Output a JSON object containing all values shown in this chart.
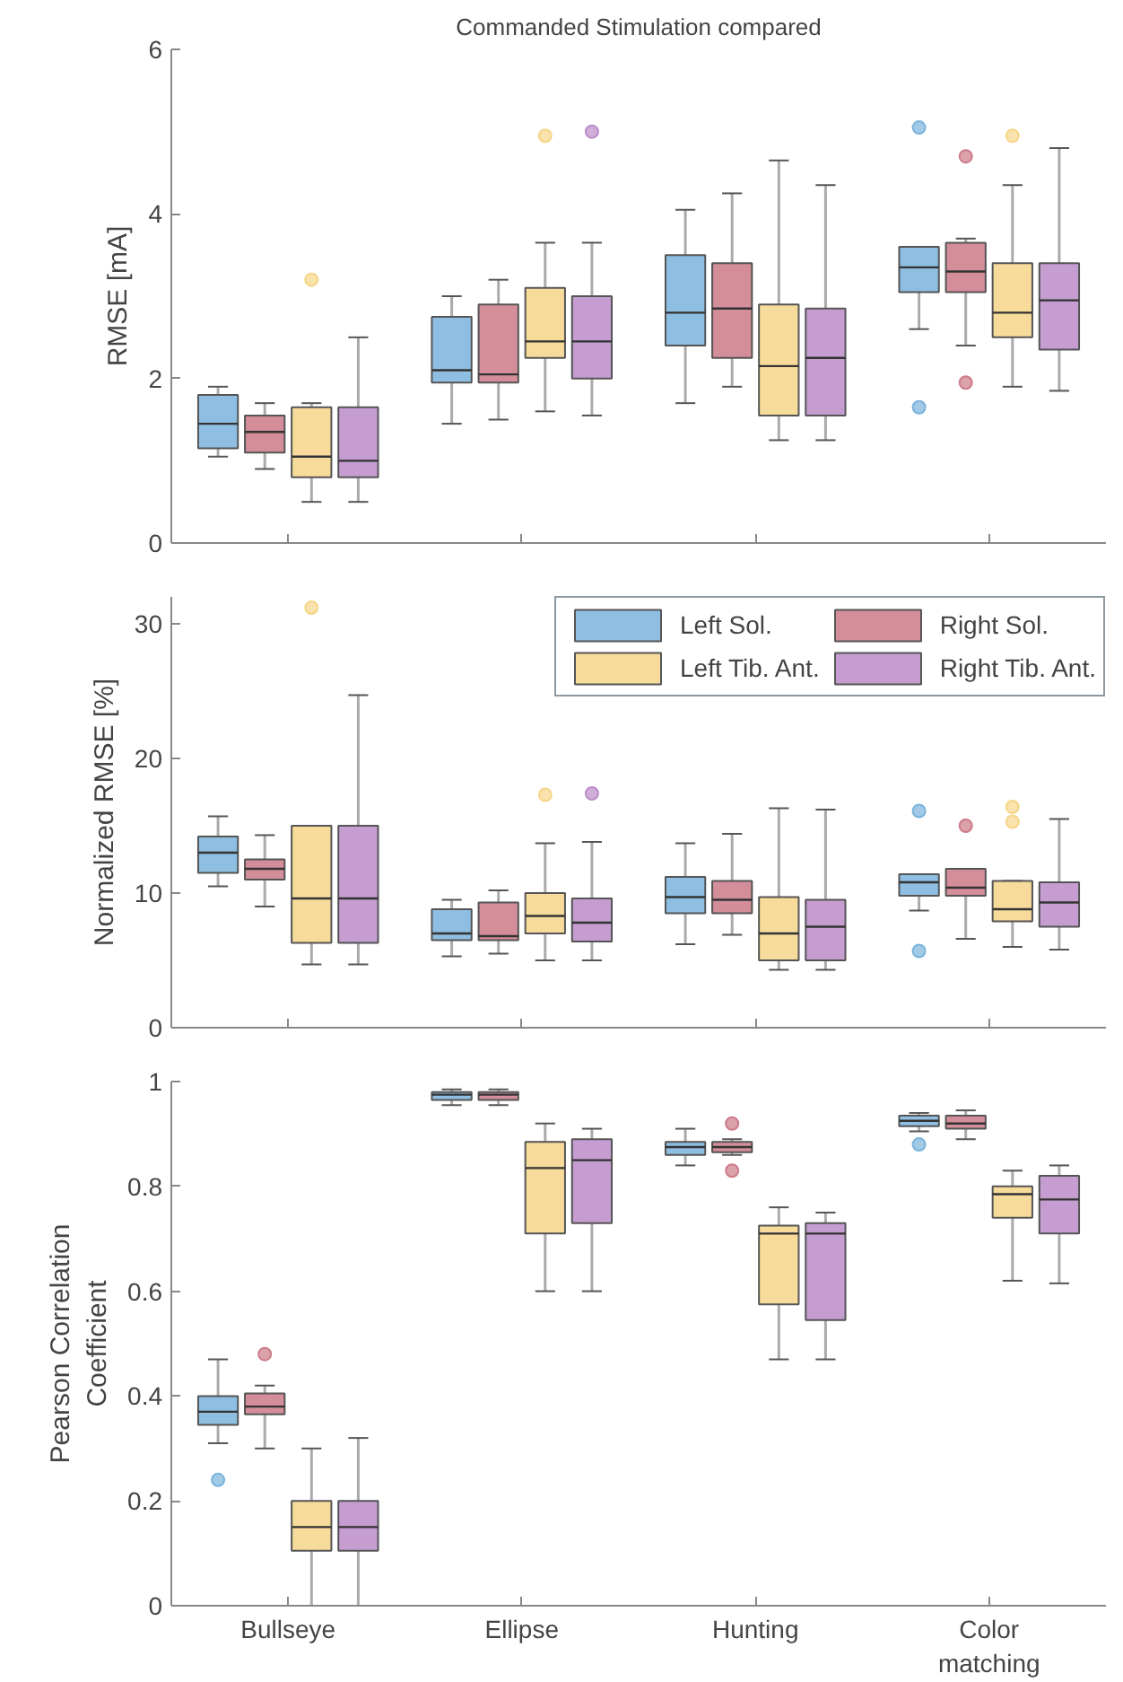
{
  "chart_data": [
    {
      "type": "box",
      "title": "Commanded Stimulation compared",
      "ylabel": "RMSE [mA]",
      "ylim": [
        0,
        6
      ],
      "yticks": [
        0,
        2,
        4,
        6
      ],
      "grid": false,
      "tick_labels": "y",
      "series": [
        {
          "color": "#7ab3dc",
          "boxes": [
            {
              "low": 1.05,
              "q1": 1.15,
              "median": 1.45,
              "q3": 1.8,
              "high": 1.9
            },
            {
              "low": 1.45,
              "q1": 1.95,
              "median": 2.1,
              "q3": 2.75,
              "high": 3.0
            },
            {
              "low": 1.7,
              "q1": 2.4,
              "median": 2.8,
              "q3": 3.5,
              "high": 4.05
            },
            {
              "low": 2.6,
              "q1": 3.05,
              "median": 3.35,
              "q3": 3.6,
              "high": 3.6,
              "outliers": [
                5.05,
                1.65
              ]
            }
          ]
        },
        {
          "color": "#cd7a87",
          "boxes": [
            {
              "low": 0.9,
              "q1": 1.1,
              "median": 1.35,
              "q3": 1.55,
              "high": 1.7
            },
            {
              "low": 1.5,
              "q1": 1.95,
              "median": 2.05,
              "q3": 2.9,
              "high": 3.2
            },
            {
              "low": 1.9,
              "q1": 2.25,
              "median": 2.85,
              "q3": 3.4,
              "high": 4.25
            },
            {
              "low": 2.4,
              "q1": 3.05,
              "median": 3.3,
              "q3": 3.65,
              "high": 3.7,
              "outliers": [
                4.7,
                1.95
              ]
            }
          ]
        },
        {
          "color": "#f6d588",
          "boxes": [
            {
              "low": 0.5,
              "q1": 0.8,
              "median": 1.05,
              "q3": 1.65,
              "high": 1.7,
              "outliers": [
                3.2
              ]
            },
            {
              "low": 1.6,
              "q1": 2.25,
              "median": 2.45,
              "q3": 3.1,
              "high": 3.65,
              "outliers": [
                4.95
              ]
            },
            {
              "low": 1.25,
              "q1": 1.55,
              "median": 2.15,
              "q3": 2.9,
              "high": 4.65
            },
            {
              "low": 1.9,
              "q1": 2.5,
              "median": 2.8,
              "q3": 3.4,
              "high": 4.35,
              "outliers": [
                4.95
              ]
            }
          ]
        },
        {
          "color": "#bb8cc8",
          "boxes": [
            {
              "low": 0.5,
              "q1": 0.8,
              "median": 1.0,
              "q3": 1.65,
              "high": 2.5
            },
            {
              "low": 1.55,
              "q1": 2.0,
              "median": 2.45,
              "q3": 3.0,
              "high": 3.65,
              "outliers": [
                5.0
              ]
            },
            {
              "low": 1.25,
              "q1": 1.55,
              "median": 2.25,
              "q3": 2.85,
              "high": 4.35
            },
            {
              "low": 1.85,
              "q1": 2.35,
              "median": 2.95,
              "q3": 3.4,
              "high": 4.8
            }
          ]
        }
      ]
    },
    {
      "type": "box",
      "ylabel": "Normalized RMSE [%]",
      "ylim": [
        0,
        32
      ],
      "yticks": [
        0,
        10,
        20,
        30
      ],
      "grid": false,
      "tick_labels": "y",
      "legend": "top right",
      "series": [
        {
          "name": "Left Sol.",
          "color": "#7ab3dc",
          "boxes": [
            {
              "low": 10.5,
              "q1": 11.5,
              "median": 13,
              "q3": 14.2,
              "high": 15.7
            },
            {
              "low": 5.3,
              "q1": 6.5,
              "median": 7,
              "q3": 8.8,
              "high": 9.5
            },
            {
              "low": 6.2,
              "q1": 8.5,
              "median": 9.7,
              "q3": 11.2,
              "high": 13.7
            },
            {
              "low": 8.7,
              "q1": 9.8,
              "median": 10.8,
              "q3": 11.4,
              "high": 11.4,
              "outliers": [
                16.1,
                5.7
              ]
            }
          ]
        },
        {
          "name": "Right Sol.",
          "color": "#cd7a87",
          "boxes": [
            {
              "low": 9,
              "q1": 11,
              "median": 11.8,
              "q3": 12.5,
              "high": 14.3
            },
            {
              "low": 5.5,
              "q1": 6.5,
              "median": 6.8,
              "q3": 9.3,
              "high": 10.2
            },
            {
              "low": 6.9,
              "q1": 8.5,
              "median": 9.5,
              "q3": 10.9,
              "high": 14.4
            },
            {
              "low": 6.6,
              "q1": 9.8,
              "median": 10.4,
              "q3": 11.8,
              "high": 11.8,
              "outliers": [
                15
              ]
            }
          ]
        },
        {
          "name": "Left Tib. Ant.",
          "color": "#f6d588",
          "boxes": [
            {
              "low": 4.7,
              "q1": 6.3,
              "median": 9.6,
              "q3": 15,
              "high": 15,
              "outliers": [
                31.2
              ]
            },
            {
              "low": 5,
              "q1": 7,
              "median": 8.3,
              "q3": 10,
              "high": 13.7,
              "outliers": [
                17.3
              ]
            },
            {
              "low": 4.3,
              "q1": 5,
              "median": 7,
              "q3": 9.7,
              "high": 16.3
            },
            {
              "low": 6,
              "q1": 7.9,
              "median": 8.8,
              "q3": 10.9,
              "high": 10.9,
              "outliers": [
                15.3,
                16.4
              ]
            }
          ]
        },
        {
          "name": "Right Tib. Ant.",
          "color": "#bb8cc8",
          "boxes": [
            {
              "low": 4.7,
              "q1": 6.3,
              "median": 9.6,
              "q3": 15,
              "high": 24.7
            },
            {
              "low": 5,
              "q1": 6.4,
              "median": 7.8,
              "q3": 9.6,
              "high": 13.8,
              "outliers": [
                17.4
              ]
            },
            {
              "low": 4.3,
              "q1": 5,
              "median": 7.5,
              "q3": 9.5,
              "high": 16.2
            },
            {
              "low": 5.8,
              "q1": 7.5,
              "median": 9.3,
              "q3": 10.8,
              "high": 15.5
            }
          ]
        }
      ]
    },
    {
      "type": "box",
      "ylabel": "Pearson Correlation\nCoefficient",
      "categories": [
        "Bullseye",
        "Ellipse",
        "Hunting",
        "Color\nmatching"
      ],
      "ylim": [
        0,
        1
      ],
      "yticks": [
        0,
        0.2,
        0.4,
        0.6,
        0.8,
        1
      ],
      "grid": false,
      "series": [
        {
          "color": "#7ab3dc",
          "boxes": [
            {
              "low": 0.31,
              "q1": 0.345,
              "median": 0.37,
              "q3": 0.4,
              "high": 0.47,
              "outliers": [
                0.24
              ]
            },
            {
              "low": 0.955,
              "q1": 0.965,
              "median": 0.975,
              "q3": 0.98,
              "high": 0.985
            },
            {
              "low": 0.84,
              "q1": 0.86,
              "median": 0.875,
              "q3": 0.885,
              "high": 0.91
            },
            {
              "low": 0.905,
              "q1": 0.915,
              "median": 0.925,
              "q3": 0.935,
              "high": 0.94,
              "outliers": [
                0.88
              ]
            }
          ]
        },
        {
          "color": "#cd7a87",
          "boxes": [
            {
              "low": 0.3,
              "q1": 0.365,
              "median": 0.38,
              "q3": 0.405,
              "high": 0.42,
              "outliers": [
                0.48
              ]
            },
            {
              "low": 0.955,
              "q1": 0.965,
              "median": 0.975,
              "q3": 0.98,
              "high": 0.985
            },
            {
              "low": 0.86,
              "q1": 0.865,
              "median": 0.875,
              "q3": 0.885,
              "high": 0.89,
              "outliers": [
                0.92,
                0.83
              ]
            },
            {
              "low": 0.89,
              "q1": 0.91,
              "median": 0.92,
              "q3": 0.935,
              "high": 0.945
            }
          ]
        },
        {
          "color": "#f6d588",
          "boxes": [
            {
              "low": 0,
              "q1": 0.105,
              "median": 0.15,
              "q3": 0.2,
              "high": 0.3
            },
            {
              "low": 0.6,
              "q1": 0.71,
              "median": 0.835,
              "q3": 0.885,
              "high": 0.92
            },
            {
              "low": 0.47,
              "q1": 0.575,
              "median": 0.71,
              "q3": 0.725,
              "high": 0.76
            },
            {
              "low": 0.62,
              "q1": 0.74,
              "median": 0.785,
              "q3": 0.8,
              "high": 0.83
            }
          ]
        },
        {
          "color": "#bb8cc8",
          "boxes": [
            {
              "low": 0,
              "q1": 0.105,
              "median": 0.15,
              "q3": 0.2,
              "high": 0.32
            },
            {
              "low": 0.6,
              "q1": 0.73,
              "median": 0.85,
              "q3": 0.89,
              "high": 0.91
            },
            {
              "low": 0.47,
              "q1": 0.545,
              "median": 0.71,
              "q3": 0.73,
              "high": 0.75
            },
            {
              "low": 0.615,
              "q1": 0.71,
              "median": 0.775,
              "q3": 0.82,
              "high": 0.84
            }
          ]
        }
      ]
    }
  ]
}
